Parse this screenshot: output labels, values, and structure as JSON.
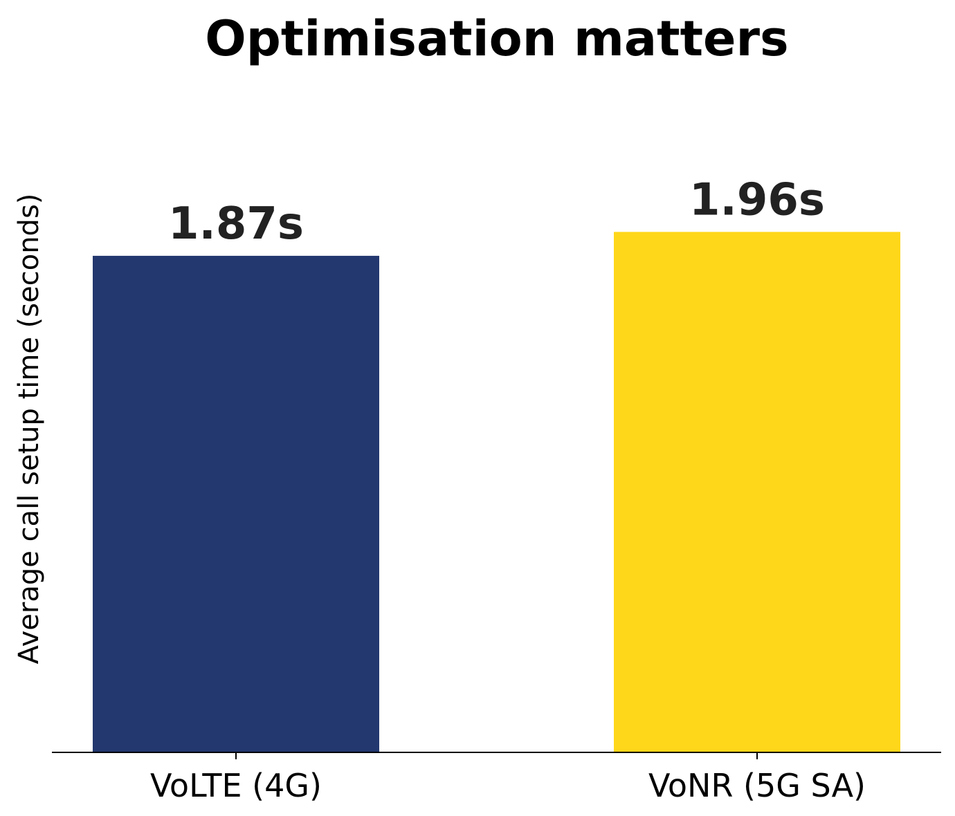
{
  "chart_data": {
    "type": "bar",
    "title": "Optimisation matters",
    "ylabel": "Average call setup time (seconds)",
    "xlabel": "",
    "categories": [
      "VoLTE (4G)",
      "VoNR (5G SA)"
    ],
    "values": [
      1.87,
      1.96
    ],
    "value_labels": [
      "1.87s",
      "1.96s"
    ],
    "colors": [
      "#23386f",
      "#ffd71a"
    ],
    "ylim": [
      0,
      2.5
    ],
    "grid": false,
    "y_axis_visible": false
  }
}
